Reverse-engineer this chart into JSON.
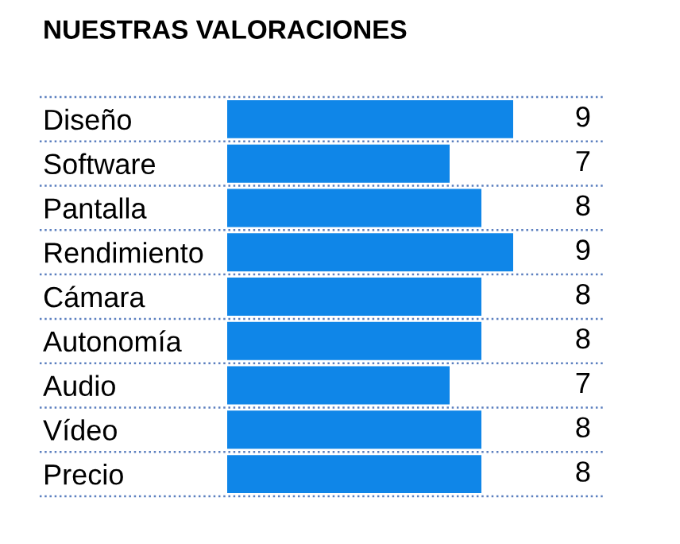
{
  "chart_data": {
    "type": "bar",
    "orientation": "horizontal",
    "title": "NUESTRAS VALORACIONES",
    "categories": [
      "Diseño",
      "Software",
      "Pantalla",
      "Rendimiento",
      "Cámara",
      "Autonomía",
      "Audio",
      "Vídeo",
      "Precio"
    ],
    "values": [
      9,
      7,
      8,
      9,
      8,
      8,
      7,
      8,
      8
    ],
    "color": "#0f86e8",
    "xlim": [
      0,
      11.85
    ],
    "tick_labels": "y",
    "data_labels": true,
    "grid": "y",
    "legend": false
  }
}
